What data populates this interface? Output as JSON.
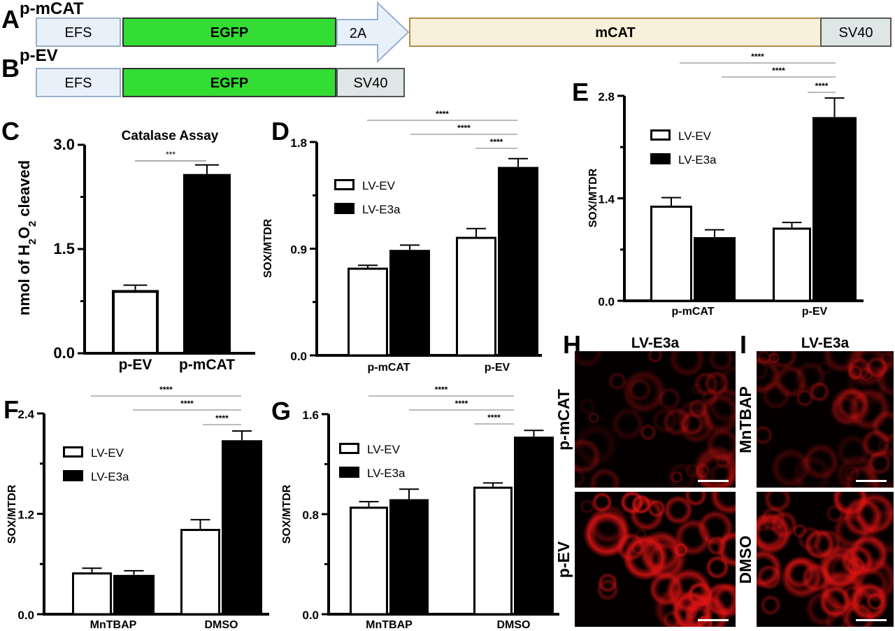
{
  "panel_letters": {
    "A": "A",
    "B": "B",
    "C": "C",
    "D": "D",
    "E": "E",
    "F": "F",
    "G": "G",
    "H": "H",
    "I": "I"
  },
  "constructs": {
    "A": {
      "title": "p-mCAT",
      "parts": [
        {
          "label": "EFS",
          "color": "#e8f1fa"
        },
        {
          "label": "EGFP",
          "color": "#33dd33"
        },
        {
          "label": "2A",
          "color": "#e8f1fa"
        },
        {
          "label": "mCAT",
          "color": "#f8f0d8"
        },
        {
          "label": "SV40",
          "color": "#dfe6e6"
        }
      ]
    },
    "B": {
      "title": "p-EV",
      "parts": [
        {
          "label": "EFS",
          "color": "#e8f1fa"
        },
        {
          "label": "EGFP",
          "color": "#33dd33"
        },
        {
          "label": "SV40",
          "color": "#dfe6e6"
        }
      ]
    }
  },
  "chart_data": [
    {
      "id": "C",
      "type": "bar",
      "title": "Catalase Assay",
      "ylabel": "nmol of H2O2 cleaved",
      "ylim": [
        0,
        3.0
      ],
      "yticks": [
        "0.0",
        "1.5",
        "3.0"
      ],
      "categories": [
        "p-EV",
        "p-mCAT"
      ],
      "series": [
        {
          "values": [
            0.91,
            2.58
          ],
          "errors": [
            0.07,
            0.13
          ],
          "fills": [
            "#ffffff",
            "#000000"
          ]
        }
      ],
      "significance": [
        {
          "from": 0,
          "to": 1,
          "label": "***"
        }
      ]
    },
    {
      "id": "D",
      "type": "bar",
      "ylabel": "SOX/MTDR",
      "ylim": [
        0,
        1.8
      ],
      "yticks": [
        "0.0",
        "0.9",
        "1.8"
      ],
      "categories": [
        "p-mCAT",
        "p-EV"
      ],
      "series": [
        {
          "name": "LV-EV",
          "fill": "#ffffff",
          "values": [
            0.74,
            1.0
          ],
          "errors": [
            0.02,
            0.07
          ]
        },
        {
          "name": "LV-E3a",
          "fill": "#000000",
          "values": [
            0.89,
            1.59
          ],
          "errors": [
            0.04,
            0.07
          ]
        }
      ],
      "legend": "upper-left",
      "significance": [
        "****",
        "****",
        "****"
      ]
    },
    {
      "id": "E",
      "type": "bar",
      "ylabel": "SOX/MTDR",
      "ylim": [
        0,
        2.8
      ],
      "yticks": [
        "0.0",
        "1.4",
        "2.8"
      ],
      "categories": [
        "p-mCAT",
        "p-EV"
      ],
      "series": [
        {
          "name": "LV-EV",
          "fill": "#ffffff",
          "values": [
            1.3,
            1.0
          ],
          "errors": [
            0.11,
            0.07
          ]
        },
        {
          "name": "LV-E3a",
          "fill": "#000000",
          "values": [
            0.87,
            2.51
          ],
          "errors": [
            0.1,
            0.26
          ]
        }
      ],
      "legend": "upper-left",
      "significance": [
        "****",
        "****",
        "****"
      ]
    },
    {
      "id": "F",
      "type": "bar",
      "ylabel": "SOX/MTDR",
      "ylim": [
        0,
        2.4
      ],
      "yticks": [
        "0.0",
        "1.2",
        "2.4"
      ],
      "categories": [
        "MnTBAP",
        "DMSO"
      ],
      "series": [
        {
          "name": "LV-EV",
          "fill": "#ffffff",
          "values": [
            0.5,
            1.02
          ],
          "errors": [
            0.05,
            0.11
          ]
        },
        {
          "name": "LV-E3a",
          "fill": "#000000",
          "values": [
            0.47,
            2.08
          ],
          "errors": [
            0.05,
            0.11
          ]
        }
      ],
      "legend": "upper-left",
      "significance": [
        "****",
        "****",
        "****"
      ]
    },
    {
      "id": "G",
      "type": "bar",
      "ylabel": "SOX/MTDR",
      "ylim": [
        0,
        1.6
      ],
      "yticks": [
        "0.0",
        "0.8",
        "1.6"
      ],
      "categories": [
        "MnTBAP",
        "DMSO"
      ],
      "series": [
        {
          "name": "LV-EV",
          "fill": "#ffffff",
          "values": [
            0.86,
            1.02
          ],
          "errors": [
            0.04,
            0.03
          ]
        },
        {
          "name": "LV-E3a",
          "fill": "#000000",
          "values": [
            0.92,
            1.42
          ],
          "errors": [
            0.08,
            0.05
          ]
        }
      ],
      "legend": "upper-left",
      "significance": [
        "****",
        "****",
        "****"
      ]
    }
  ],
  "microscopy": {
    "H": {
      "title": "LV-E3a",
      "rows": [
        "p-mCAT",
        "p-EV"
      ],
      "intensity": [
        0.45,
        1.0
      ]
    },
    "I": {
      "title": "LV-E3a",
      "rows": [
        "MnTBAP",
        "DMSO"
      ],
      "intensity": [
        0.5,
        0.9
      ]
    },
    "stain_color": "#e01010"
  }
}
